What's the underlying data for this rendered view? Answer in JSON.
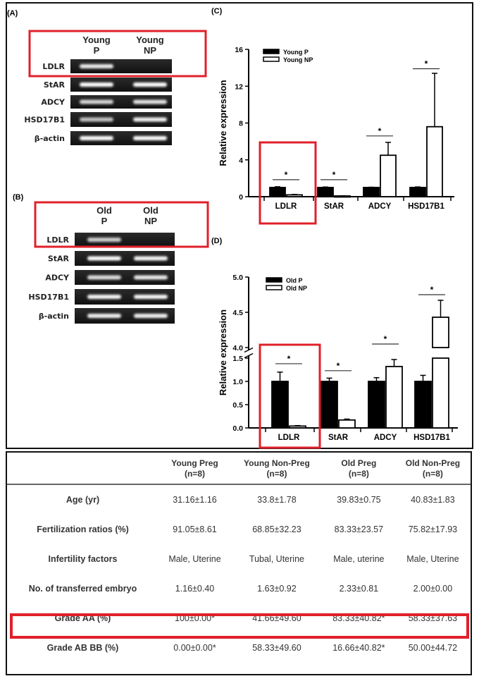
{
  "panels": {
    "a": {
      "label": "(A)",
      "lanes": [
        [
          "Young",
          "P"
        ],
        [
          "Young",
          "NP"
        ]
      ],
      "genes": [
        "LDLR",
        "StAR",
        "ADCY",
        "HSD17B1",
        "β-actin"
      ],
      "band_intensity": [
        [
          0.85,
          0.0
        ],
        [
          1.0,
          1.0
        ],
        [
          0.7,
          0.8
        ],
        [
          0.55,
          0.9
        ],
        [
          1.0,
          1.0
        ]
      ]
    },
    "b": {
      "label": "(B)",
      "lanes": [
        [
          "Old",
          "P"
        ],
        [
          "Old",
          "NP"
        ]
      ],
      "genes": [
        "LDLR",
        "StAR",
        "ADCY",
        "HSD17B1",
        "β-actin"
      ],
      "band_intensity": [
        [
          0.65,
          0.0
        ],
        [
          1.0,
          0.95
        ],
        [
          0.75,
          0.85
        ],
        [
          0.95,
          0.95
        ],
        [
          0.9,
          0.9
        ]
      ]
    },
    "c": {
      "label": "(C)"
    },
    "d": {
      "label": "(D)"
    }
  },
  "highlight_color": "#e0202a",
  "chart_data": [
    {
      "type": "bar",
      "panel": "C",
      "categories": [
        "LDLR",
        "StAR",
        "ADCY",
        "HSD17B1"
      ],
      "ylabel": "Relative expression",
      "ylim": [
        0,
        16
      ],
      "yticks": [
        "0",
        "4",
        "8",
        "12",
        "16"
      ],
      "legend_position": "top-left",
      "series": [
        {
          "name": "Young P",
          "color": "#000000",
          "values": [
            1.0,
            1.0,
            1.0,
            1.0
          ],
          "error_upper": [
            1.08,
            1.05,
            1.03,
            1.06
          ]
        },
        {
          "name": "Young NP",
          "color": "#ffffff",
          "values": [
            0.2,
            0.08,
            4.5,
            7.6
          ],
          "error_upper": [
            0.25,
            0.1,
            5.9,
            13.4
          ]
        }
      ],
      "significance": [
        {
          "category": "LDLR",
          "mark": "*",
          "level": 1.85
        },
        {
          "category": "StAR",
          "mark": "*",
          "level": 1.85
        },
        {
          "category": "ADCY",
          "mark": "*",
          "level": 6.6
        },
        {
          "category": "HSD17B1",
          "mark": "*",
          "level": 13.9
        }
      ]
    },
    {
      "type": "bar",
      "panel": "D",
      "categories": [
        "LDLR",
        "StAR",
        "ADCY",
        "HSD17B1"
      ],
      "ylabel": "Relative expression",
      "ylim": [
        0,
        5.0
      ],
      "axis_break": [
        1.5,
        4.0
      ],
      "yticks": [
        "0.0",
        "0.5",
        "1.0",
        "1.5",
        "4.0",
        "4.5",
        "5.0"
      ],
      "legend_position": "top-left",
      "series": [
        {
          "name": "Old P",
          "color": "#000000",
          "values": [
            1.0,
            1.0,
            1.0,
            1.0
          ],
          "error_upper": [
            1.2,
            1.07,
            1.08,
            1.13
          ]
        },
        {
          "name": "Old NP",
          "color": "#ffffff",
          "values": [
            0.04,
            0.17,
            1.32,
            4.43
          ],
          "error_upper": [
            0.05,
            0.19,
            1.47,
            4.67
          ]
        }
      ],
      "significance": [
        {
          "category": "LDLR",
          "mark": "*",
          "level": 1.38
        },
        {
          "category": "StAR",
          "mark": "*",
          "level": 1.23
        },
        {
          "category": "ADCY",
          "mark": "*",
          "level": 4.05
        },
        {
          "category": "HSD17B1",
          "mark": "*",
          "level": 4.75
        }
      ]
    }
  ],
  "table": {
    "columns": [
      {
        "name": "Young Preg",
        "n": "(n=8)"
      },
      {
        "name": "Young Non-Preg",
        "n": "(n=8)"
      },
      {
        "name": "Old Preg",
        "n": "(n=8)"
      },
      {
        "name": "Old Non-Preg",
        "n": "(n=8)"
      }
    ],
    "rows": [
      {
        "label": "Age (yr)",
        "cells": [
          "31.16±1.16",
          "33.8±1.78",
          "39.83±0.75",
          "40.83±1.83"
        ]
      },
      {
        "label": "Fertilization ratios (%)",
        "cells": [
          "91.05±8.61",
          "68.85±32.23",
          "83.33±23.57",
          "75.82±17.93"
        ]
      },
      {
        "label": "Infertility factors",
        "cells": [
          "Male, Uterine",
          "Tubal, Uterine",
          "Male, uterine",
          "Male, Uterine"
        ]
      },
      {
        "label": "No. of transferred embryo",
        "cells": [
          "1.16±0.40",
          "1.63±0.92",
          "2.33±0.81",
          "2.00±0.00"
        ]
      },
      {
        "label": "Grade AA  (%)",
        "cells": [
          "100±0.00*",
          "41.66±49.60",
          "83.33±40.82*",
          "58.33±37.63"
        ],
        "highlighted": true
      },
      {
        "label": "Grade AB BB (%)",
        "cells": [
          "0.00±0.00*",
          "58.33±49.60",
          "16.66±40.82*",
          "50.00±44.72"
        ]
      }
    ]
  }
}
